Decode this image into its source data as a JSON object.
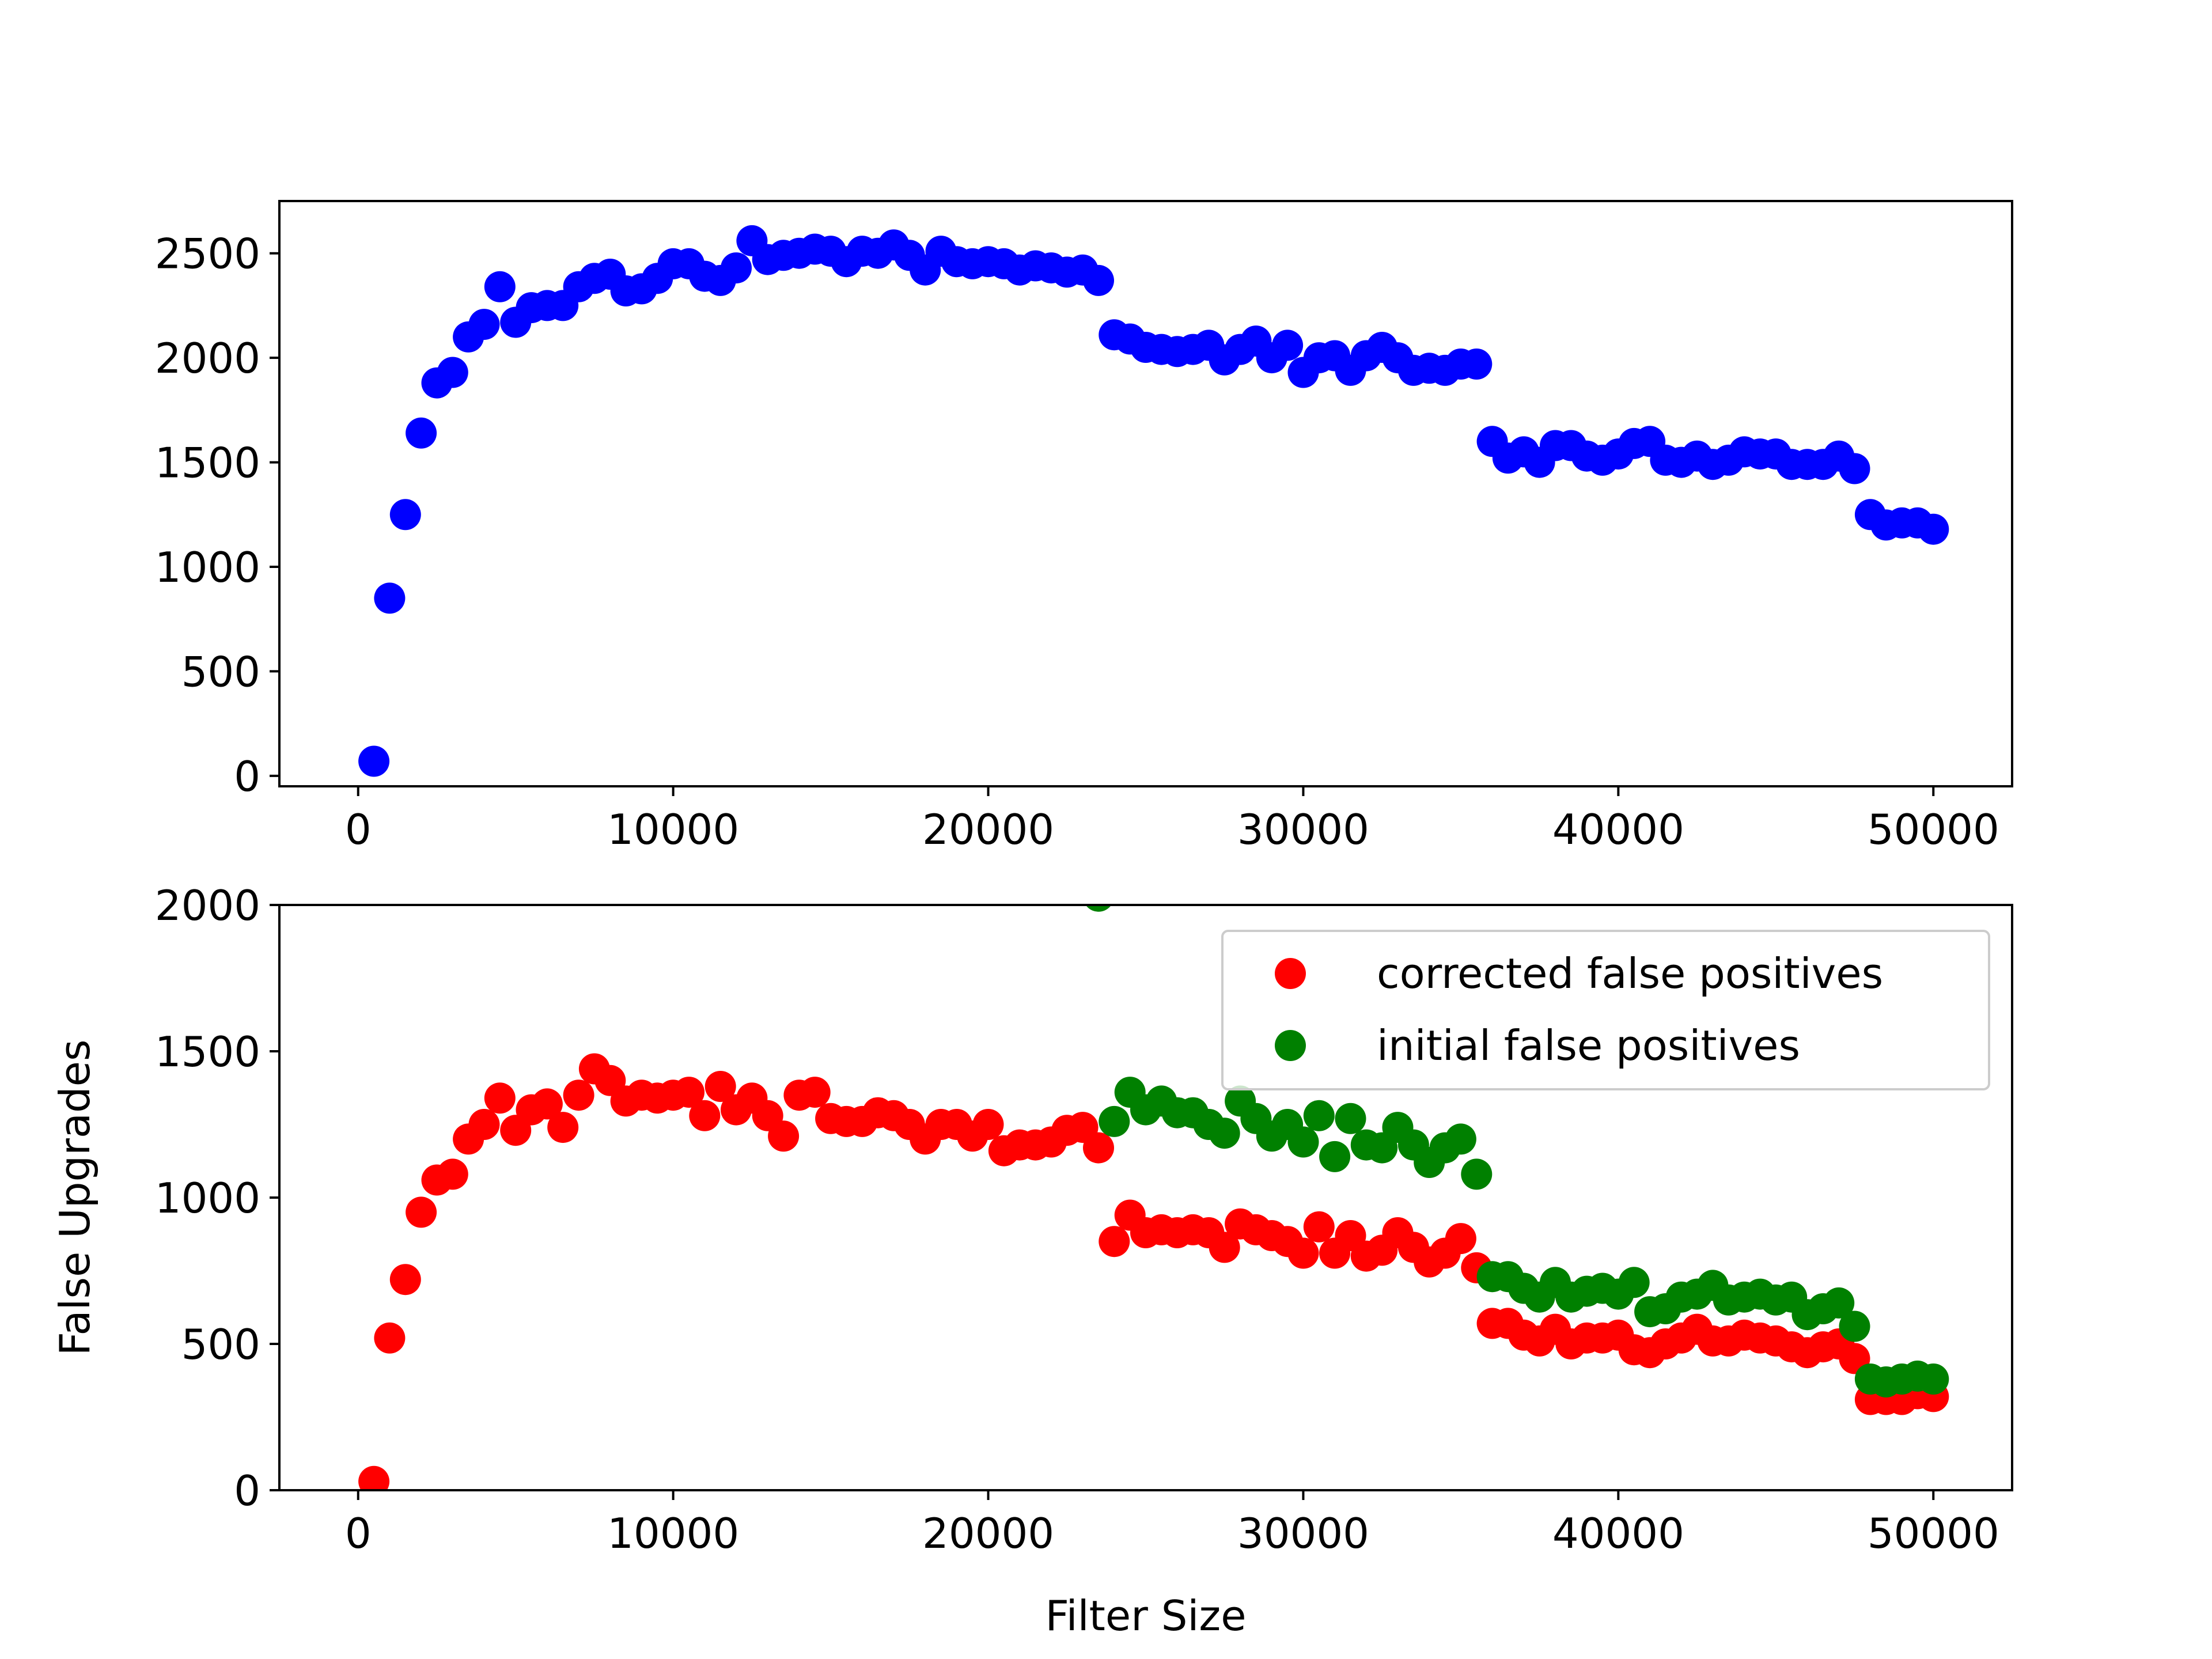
{
  "chart_data": [
    {
      "type": "scatter",
      "xlabel": "",
      "ylabel": "",
      "xlim": [
        -2500,
        52500
      ],
      "ylim": [
        -50,
        2750
      ],
      "xticks": [
        0,
        10000,
        20000,
        30000,
        40000,
        50000
      ],
      "yticks": [
        0,
        500,
        1000,
        1500,
        2000,
        2500
      ],
      "xtick_labels": [
        "0",
        "10000",
        "20000",
        "30000",
        "40000",
        "50000"
      ],
      "ytick_labels": [
        "0",
        "500",
        "1000",
        "1500",
        "2000",
        "2500"
      ],
      "series": [
        {
          "color": "#0000ff",
          "x": [
            500,
            1000,
            1500,
            2000,
            2500,
            3000,
            3500,
            4000,
            4500,
            5000,
            5500,
            6000,
            6500,
            7000,
            7500,
            8000,
            8500,
            9000,
            9500,
            10000,
            10500,
            11000,
            11500,
            12000,
            12500,
            13000,
            13500,
            14000,
            14500,
            15000,
            15500,
            16000,
            16500,
            17000,
            17500,
            18000,
            18500,
            19000,
            19500,
            20000,
            20500,
            21000,
            21500,
            22000,
            22500,
            23000,
            23500,
            24000,
            24500,
            25000,
            25500,
            26000,
            26500,
            27000,
            27500,
            28000,
            28500,
            29000,
            29500,
            30000,
            30500,
            31000,
            31500,
            32000,
            32500,
            33000,
            33500,
            34000,
            34500,
            35000,
            35500,
            36000,
            36500,
            37000,
            37500,
            38000,
            38500,
            39000,
            39500,
            40000,
            40500,
            41000,
            41500,
            42000,
            42500,
            43000,
            43500,
            44000,
            44500,
            45000,
            45500,
            46000,
            46500,
            47000,
            47500,
            48000,
            48500,
            49000,
            49500,
            50000
          ],
          "y": [
            70,
            850,
            1250,
            1640,
            1880,
            1930,
            2100,
            2160,
            2340,
            2170,
            2240,
            2250,
            2250,
            2340,
            2380,
            2400,
            2320,
            2330,
            2380,
            2450,
            2450,
            2390,
            2370,
            2430,
            2560,
            2470,
            2490,
            2500,
            2520,
            2510,
            2460,
            2510,
            2500,
            2540,
            2490,
            2420,
            2510,
            2460,
            2450,
            2460,
            2450,
            2420,
            2440,
            2430,
            2410,
            2420,
            2370,
            2110,
            2090,
            2050,
            2040,
            2030,
            2040,
            2060,
            1990,
            2040,
            2080,
            2000,
            2060,
            1930,
            2000,
            2010,
            1940,
            2010,
            2050,
            2000,
            1940,
            1950,
            1940,
            1970,
            1970,
            1600,
            1520,
            1550,
            1500,
            1580,
            1580,
            1530,
            1510,
            1540,
            1590,
            1600,
            1510,
            1500,
            1530,
            1490,
            1510,
            1550,
            1540,
            1540,
            1490,
            1490,
            1490,
            1530,
            1470,
            1250,
            1200,
            1210,
            1210,
            1180
          ]
        }
      ]
    },
    {
      "type": "scatter",
      "xlabel": "Filter Size",
      "ylabel": "False Upgrades",
      "xlim": [
        -2500,
        52500
      ],
      "ylim": [
        0,
        2000
      ],
      "xticks": [
        0,
        10000,
        20000,
        30000,
        40000,
        50000
      ],
      "yticks": [
        0,
        500,
        1000,
        1500,
        2000
      ],
      "xtick_labels": [
        "0",
        "10000",
        "20000",
        "30000",
        "40000",
        "50000"
      ],
      "ytick_labels": [
        "0",
        "500",
        "1000",
        "1500",
        "2000"
      ],
      "legend_position": "top-right",
      "series": [
        {
          "name": "corrected false positives",
          "color": "#ff0000",
          "x": [
            500,
            1000,
            1500,
            2000,
            2500,
            3000,
            3500,
            4000,
            4500,
            5000,
            5500,
            6000,
            6500,
            7000,
            7500,
            8000,
            8500,
            9000,
            9500,
            10000,
            10500,
            11000,
            11500,
            12000,
            12500,
            13000,
            13500,
            14000,
            14500,
            15000,
            15500,
            16000,
            16500,
            17000,
            17500,
            18000,
            18500,
            19000,
            19500,
            20000,
            20500,
            21000,
            21500,
            22000,
            22500,
            23000,
            23500,
            24000,
            24500,
            25000,
            25500,
            26000,
            26500,
            27000,
            27500,
            28000,
            28500,
            29000,
            29500,
            30000,
            30500,
            31000,
            31500,
            32000,
            32500,
            33000,
            33500,
            34000,
            34500,
            35000,
            35500,
            36000,
            36500,
            37000,
            37500,
            38000,
            38500,
            39000,
            39500,
            40000,
            40500,
            41000,
            41500,
            42000,
            42500,
            43000,
            43500,
            44000,
            44500,
            45000,
            45500,
            46000,
            46500,
            47000,
            47500,
            48000,
            48500,
            49000,
            49500,
            50000
          ],
          "y": [
            30,
            520,
            720,
            950,
            1060,
            1080,
            1200,
            1250,
            1340,
            1230,
            1300,
            1320,
            1240,
            1350,
            1440,
            1400,
            1330,
            1350,
            1340,
            1350,
            1360,
            1280,
            1380,
            1300,
            1340,
            1280,
            1210,
            1350,
            1360,
            1270,
            1260,
            1260,
            1290,
            1280,
            1250,
            1200,
            1250,
            1250,
            1210,
            1250,
            1160,
            1180,
            1180,
            1190,
            1230,
            1240,
            1170,
            850,
            940,
            880,
            890,
            880,
            890,
            880,
            830,
            910,
            890,
            870,
            850,
            810,
            900,
            810,
            870,
            800,
            820,
            880,
            830,
            780,
            810,
            860,
            760,
            570,
            570,
            530,
            510,
            550,
            500,
            520,
            520,
            530,
            480,
            470,
            500,
            520,
            550,
            510,
            510,
            530,
            520,
            510,
            490,
            470,
            490,
            500,
            450,
            310,
            310,
            310,
            330,
            320
          ]
        },
        {
          "name": "initial false positives",
          "color": "#008000",
          "x": [
            23500,
            24000,
            24500,
            25000,
            25500,
            26000,
            26500,
            27000,
            27500,
            28000,
            28500,
            29000,
            29500,
            30000,
            30500,
            31000,
            31500,
            32000,
            32500,
            33000,
            33500,
            34000,
            34500,
            35000,
            35500,
            36000,
            36500,
            37000,
            37500,
            38000,
            38500,
            39000,
            39500,
            40000,
            40500,
            41000,
            41500,
            42000,
            42500,
            43000,
            43500,
            44000,
            44500,
            45000,
            45500,
            46000,
            46500,
            47000,
            47500,
            48000,
            48500,
            49000,
            49500,
            50000
          ],
          "y": [
            2030,
            1260,
            1360,
            1300,
            1330,
            1290,
            1290,
            1250,
            1220,
            1330,
            1270,
            1210,
            1250,
            1190,
            1280,
            1140,
            1270,
            1180,
            1170,
            1240,
            1180,
            1120,
            1170,
            1200,
            1080,
            730,
            730,
            690,
            660,
            710,
            660,
            680,
            690,
            670,
            710,
            610,
            620,
            660,
            670,
            700,
            650,
            660,
            670,
            650,
            660,
            600,
            620,
            640,
            560,
            380,
            370,
            380,
            390,
            380
          ]
        }
      ]
    }
  ]
}
